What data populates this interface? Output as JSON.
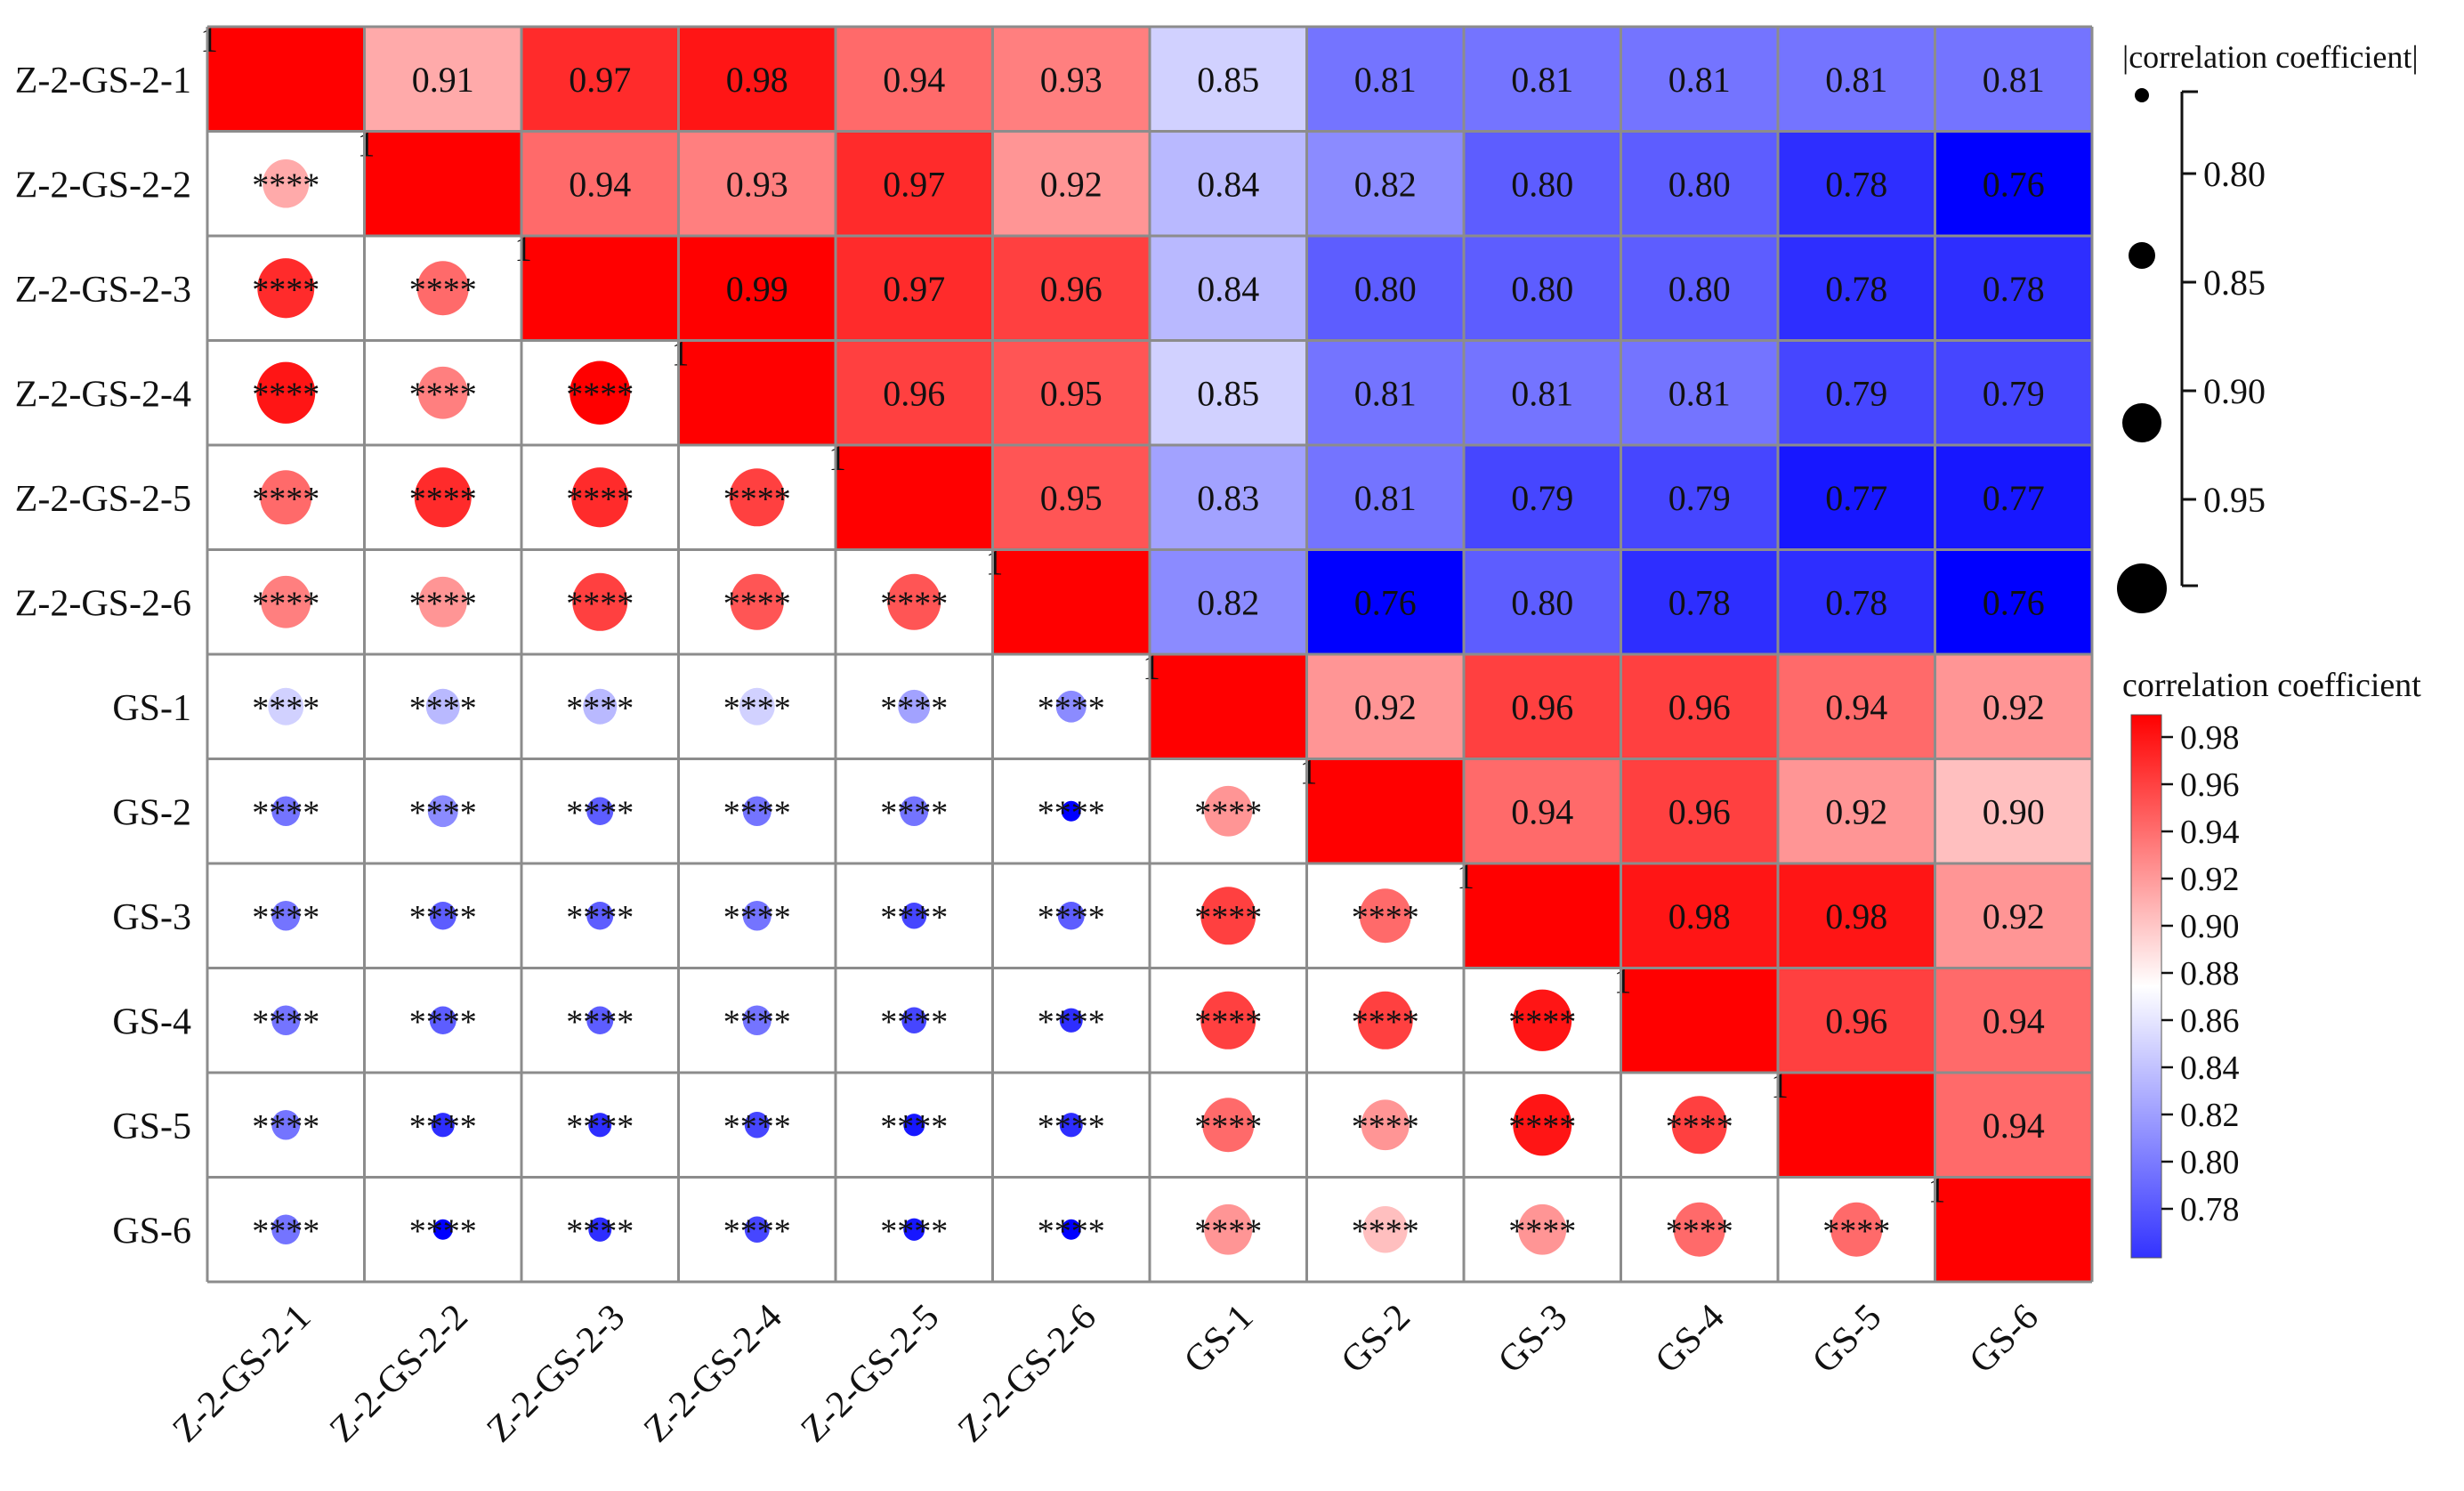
{
  "chart_data": {
    "type": "heatmap",
    "labels": [
      "Z-2-GS-2-1",
      "Z-2-GS-2-2",
      "Z-2-GS-2-3",
      "Z-2-GS-2-4",
      "Z-2-GS-2-5",
      "Z-2-GS-2-6",
      "GS-1",
      "GS-2",
      "GS-3",
      "GS-4",
      "GS-5",
      "GS-6"
    ],
    "upper_values": [
      [
        null,
        "0.91",
        "0.97",
        "0.98",
        "0.94",
        "0.93",
        "0.85",
        "0.81",
        "0.81",
        "0.81",
        "0.81",
        "0.81"
      ],
      [
        null,
        null,
        "0.94",
        "0.93",
        "0.97",
        "0.92",
        "0.84",
        "0.82",
        "0.80",
        "0.80",
        "0.78",
        "0.76"
      ],
      [
        null,
        null,
        null,
        "0.99",
        "0.97",
        "0.96",
        "0.84",
        "0.80",
        "0.80",
        "0.80",
        "0.78",
        "0.78"
      ],
      [
        null,
        null,
        null,
        null,
        "0.96",
        "0.95",
        "0.85",
        "0.81",
        "0.81",
        "0.81",
        "0.79",
        "0.79"
      ],
      [
        null,
        null,
        null,
        null,
        null,
        "0.95",
        "0.83",
        "0.81",
        "0.79",
        "0.79",
        "0.77",
        "0.77"
      ],
      [
        null,
        null,
        null,
        null,
        null,
        null,
        "0.82",
        "0.76",
        "0.80",
        "0.78",
        "0.78",
        "0.76"
      ],
      [
        null,
        null,
        null,
        null,
        null,
        null,
        null,
        "0.92",
        "0.96",
        "0.96",
        "0.94",
        "0.92"
      ],
      [
        null,
        null,
        null,
        null,
        null,
        null,
        null,
        null,
        "0.94",
        "0.96",
        "0.92",
        "0.90"
      ],
      [
        null,
        null,
        null,
        null,
        null,
        null,
        null,
        null,
        null,
        "0.98",
        "0.98",
        "0.92"
      ],
      [
        null,
        null,
        null,
        null,
        null,
        null,
        null,
        null,
        null,
        null,
        "0.96",
        "0.94"
      ],
      [
        null,
        null,
        null,
        null,
        null,
        null,
        null,
        null,
        null,
        null,
        null,
        "0.94"
      ],
      [
        null,
        null,
        null,
        null,
        null,
        null,
        null,
        null,
        null,
        null,
        null,
        null
      ]
    ],
    "diagonal_value": 1.0,
    "diagonal_fragment": "1",
    "significance_label": "****",
    "size_legend": {
      "title": "|correlation coefficient|",
      "ticks": [
        "0.80",
        "0.85",
        "0.90",
        "0.95"
      ]
    },
    "color_legend": {
      "title": "correlation coefficient",
      "ticks": [
        "0.98",
        "0.96",
        "0.94",
        "0.92",
        "0.90",
        "0.88",
        "0.86",
        "0.84",
        "0.82",
        "0.80",
        "0.78"
      ],
      "range": [
        0.76,
        0.99
      ],
      "low_color": "#0000ff",
      "mid_color": "#ffffff",
      "mid_value": 0.87,
      "high_color": "#ff0000"
    }
  }
}
